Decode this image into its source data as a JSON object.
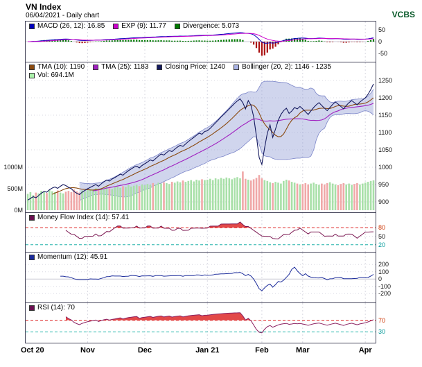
{
  "header": {
    "title": "VN Index",
    "subtitle": "06/04/2021 - Daily chart",
    "brand": "VCBS"
  },
  "panels": {
    "macd": {
      "legend": [
        {
          "label": "MACD (26, 12): 16.85",
          "color": "#0000bb"
        },
        {
          "label": "EXP (9): 11.77",
          "color": "#cc00cc"
        },
        {
          "label": "Divergence: 5.073",
          "color": "#007a00"
        }
      ]
    },
    "price": {
      "legend_row1": [
        {
          "label": "TMA (10): 1190",
          "color": "#8a4a10"
        },
        {
          "label": "TMA (25): 1183",
          "color": "#a020c0"
        },
        {
          "label": "Closing Price: 1240",
          "color": "#14195e"
        },
        {
          "label": "Bollinger (20, 2): 1146 - 1235",
          "color": "#aab4e6"
        }
      ],
      "legend_row2": [
        {
          "label": "Vol: 694.1M",
          "color": "#aaf0aa"
        }
      ]
    },
    "mfi": {
      "legend": [
        {
          "label": "Money Flow Index (14): 57.41",
          "color": "#6a1050"
        }
      ]
    },
    "momentum": {
      "legend": [
        {
          "label": "Momentum (12): 45.91",
          "color": "#1a2a9a"
        }
      ]
    },
    "rsi": {
      "legend": [
        {
          "label": "RSI (14): 70",
          "color": "#6a1050"
        }
      ]
    }
  },
  "colors": {
    "accent_brand": "#0a5a2a",
    "grid": "#d8d8e2",
    "macd_line": "#0000bb",
    "exp_line": "#cc00cc",
    "hist_up": "#007a00",
    "hist_down": "#aa1111",
    "price_line": "#14195e",
    "tma10_line": "#8a4a10",
    "tma25_line": "#a020c0",
    "bollinger_fill": "rgba(150,162,215,0.45)",
    "bollinger_edge": "#7a84c8",
    "volume_up": "#a8e0a8",
    "volume_down": "#f0a8a8",
    "mfi_line": "#7a1650",
    "momentum_line": "#1a2a9a",
    "rsi_line": "#8a2060",
    "fill_above": "#e24848",
    "fill_below": "#2ab2aa",
    "threshold_high": "#dd2222",
    "threshold_low": "#20b2aa",
    "tick_high": "#cc3300",
    "tick_low": "#009999"
  },
  "chart_data": {
    "type": "line",
    "title": "VN Index",
    "subtitle": "06/04/2021 - Daily chart",
    "x_range": [
      "Oct 2020",
      "Apr 2021"
    ],
    "months": [
      {
        "label": "Oct 20",
        "index": 0
      },
      {
        "label": "Nov",
        "index": 22
      },
      {
        "label": "Dec",
        "index": 43
      },
      {
        "label": "Jan 21",
        "index": 66
      },
      {
        "label": "Feb",
        "index": 86
      },
      {
        "label": "Mar",
        "index": 101
      },
      {
        "label": "Apr",
        "index": 124
      }
    ],
    "close": [
      905,
      910,
      915,
      912,
      918,
      925,
      930,
      928,
      935,
      940,
      943,
      939,
      945,
      950,
      947,
      942,
      938,
      930,
      925,
      921,
      928,
      933,
      938,
      942,
      946,
      950,
      945,
      952,
      958,
      963,
      960,
      966,
      970,
      975,
      980,
      977,
      984,
      990,
      995,
      1000,
      1003,
      998,
      1005,
      1010,
      1015,
      1021,
      1018,
      1025,
      1032,
      1038,
      1035,
      1042,
      1048,
      1045,
      1052,
      1058,
      1063,
      1060,
      1067,
      1074,
      1080,
      1086,
      1092,
      1098,
      1095,
      1103,
      1105,
      1112,
      1120,
      1128,
      1136,
      1145,
      1152,
      1160,
      1168,
      1176,
      1184,
      1191,
      1197,
      1186,
      1168,
      1192,
      1178,
      1145,
      1090,
      1028,
      1008,
      1055,
      1098,
      1122,
      1086,
      1110,
      1135,
      1152,
      1163,
      1170,
      1155,
      1162,
      1172,
      1168,
      1175,
      1168,
      1160,
      1152,
      1162,
      1172,
      1180,
      1186,
      1178,
      1170,
      1163,
      1172,
      1181,
      1188,
      1182,
      1175,
      1168,
      1178,
      1186,
      1192,
      1186,
      1180,
      1188,
      1194,
      1200,
      1210,
      1224,
      1240
    ],
    "volume_m": [
      380,
      420,
      350,
      410,
      390,
      450,
      430,
      400,
      470,
      440,
      420,
      460,
      410,
      390,
      430,
      450,
      420,
      480,
      440,
      410,
      460,
      430,
      470,
      490,
      460,
      510,
      480,
      520,
      500,
      540,
      510,
      490,
      530,
      550,
      520,
      560,
      540,
      580,
      550,
      570,
      590,
      560,
      600,
      580,
      610,
      590,
      630,
      600,
      640,
      620,
      650,
      630,
      610,
      660,
      640,
      670,
      650,
      690,
      660,
      680,
      700,
      670,
      710,
      690,
      720,
      700,
      710,
      730,
      700,
      740,
      720,
      750,
      730,
      760,
      740,
      720,
      750,
      770,
      740,
      900,
      730,
      710,
      690,
      720,
      750,
      820,
      740,
      700,
      680,
      650,
      630,
      660,
      640,
      620,
      680,
      710,
      690,
      660,
      640,
      620,
      600,
      610,
      630,
      600,
      620,
      640,
      610,
      590,
      620,
      600,
      630,
      650,
      620,
      600,
      580,
      610,
      630,
      600,
      620,
      590,
      610,
      630,
      600,
      620,
      640,
      660,
      680,
      694
    ],
    "panels": [
      {
        "name": "MACD",
        "values": {
          "macd_26_12": 16.85,
          "exp_9": 11.77,
          "divergence": 5.073
        },
        "ylim": [
          -65,
          65
        ],
        "yticks": [
          50,
          0,
          -50
        ]
      },
      {
        "name": "Price",
        "values": {
          "tma_10": 1190,
          "tma_25": 1183,
          "closing_price": 1240,
          "bollinger_20_2": "1146 - 1235",
          "vol": "694.1M"
        },
        "ylim": [
          900,
          1250
        ],
        "yticks": [
          1250,
          1200,
          1150,
          1100,
          1050,
          1000,
          950,
          900
        ],
        "vol_ticks": [
          {
            "v": 1000,
            "label": "1000M"
          },
          {
            "v": 500,
            "label": "500M"
          },
          {
            "v": 0,
            "label": "0M"
          }
        ]
      },
      {
        "name": "Money Flow Index (14)",
        "value": 57.41,
        "ylim": [
          0,
          100
        ],
        "yticks": [
          80,
          50,
          20
        ],
        "thresholds": [
          80,
          20
        ]
      },
      {
        "name": "Momentum (12)",
        "value": 45.91,
        "ylim": [
          -260,
          260
        ],
        "yticks": [
          200,
          100,
          0,
          -100,
          -200
        ]
      },
      {
        "name": "RSI (14)",
        "value": 70,
        "ylim": [
          0,
          100
        ],
        "yticks": [
          70,
          30
        ],
        "thresholds": [
          70,
          30
        ]
      }
    ]
  }
}
